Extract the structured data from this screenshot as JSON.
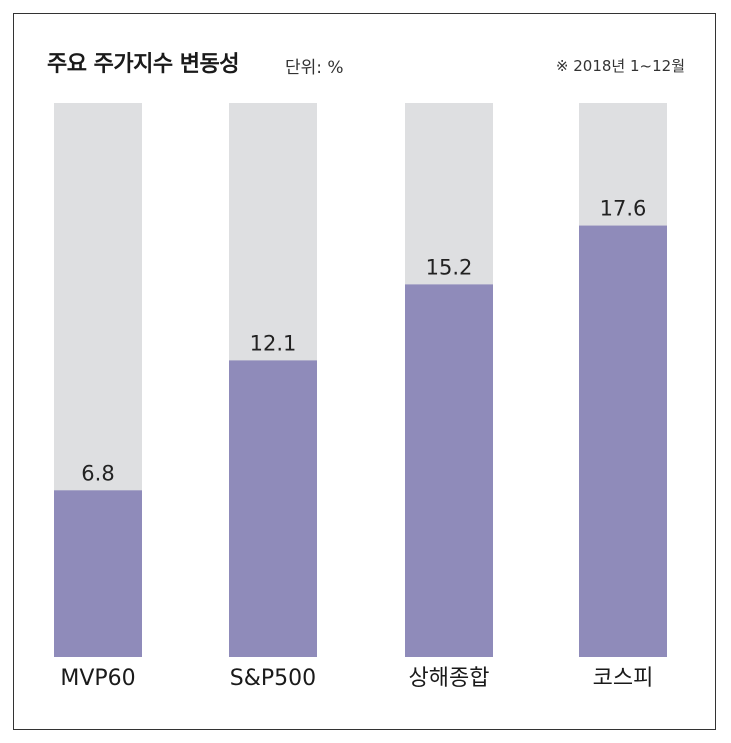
{
  "header": {
    "title": "주요 주가지수 변동성",
    "unit": "단위: %",
    "note": "※ 2018년 1~12월"
  },
  "colors": {
    "bar_fill": "#8f8bba",
    "bar_background": "#dedfe1",
    "frame": "#333333"
  },
  "chart_data": {
    "type": "bar",
    "categories": [
      "MVP60",
      "S&P500",
      "상해종합",
      "코스피"
    ],
    "values": [
      6.8,
      12.1,
      15.2,
      17.6
    ],
    "value_labels": [
      "6.8",
      "12.1",
      "15.2",
      "17.6"
    ],
    "title": "주요 주가지수 변동성",
    "ylabel": "",
    "xlabel": "",
    "ylim": [
      0,
      22.6
    ],
    "grid": false,
    "legend": "none"
  }
}
